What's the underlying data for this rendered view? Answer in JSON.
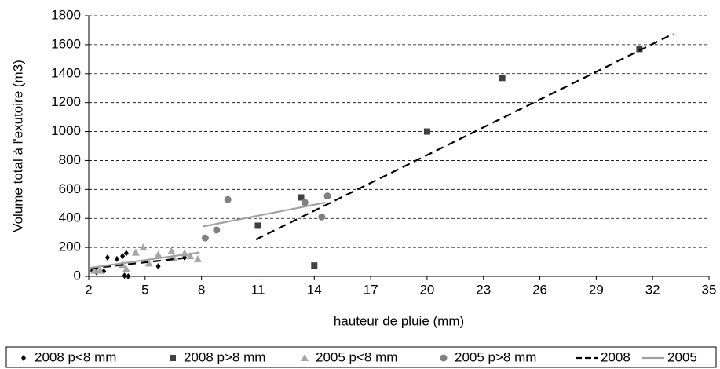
{
  "chart_data": {
    "type": "scatter",
    "xlabel": "hauteur de pluie (mm)",
    "ylabel": "Volume total à l'exutoire (m3)",
    "xlim": [
      2,
      35
    ],
    "xticks": [
      2,
      5,
      8,
      11,
      14,
      17,
      20,
      23,
      26,
      29,
      32,
      35
    ],
    "ylim": [
      0,
      1800
    ],
    "yticks": [
      0,
      200,
      400,
      600,
      800,
      1000,
      1200,
      1400,
      1600,
      1800
    ],
    "grid": true,
    "legend": "bottom",
    "series": [
      {
        "name": "2008 p<8 mm",
        "color": "#000000",
        "marker": "diamond",
        "x": [
          2.2,
          2.4,
          2.8,
          3.0,
          3.5,
          3.8,
          3.9,
          4.1,
          4.0,
          5.7,
          7.1
        ],
        "values": [
          40,
          30,
          35,
          130,
          120,
          140,
          5,
          0,
          160,
          70,
          130
        ]
      },
      {
        "name": "2008 p>8 mm",
        "color": "#404040",
        "marker": "square",
        "x": [
          11,
          13.3,
          14,
          20,
          24,
          31.3
        ],
        "values": [
          350,
          545,
          75,
          1000,
          1370,
          1570
        ]
      },
      {
        "name": "2005 p<8 mm",
        "color": "#a6a6a6",
        "marker": "triangle",
        "x": [
          2.3,
          2.6,
          3.8,
          4.0,
          4.5,
          4.9,
          5.2,
          5.7,
          6.4,
          6.5,
          7.1,
          7.4,
          7.8
        ],
        "values": [
          40,
          40,
          80,
          50,
          165,
          200,
          90,
          150,
          175,
          130,
          160,
          140,
          120
        ]
      },
      {
        "name": "2005 p>8 mm",
        "color": "#808080",
        "marker": "circle",
        "x": [
          8.2,
          8.8,
          9.4,
          13.5,
          14.4,
          14.7
        ],
        "values": [
          265,
          320,
          530,
          510,
          410,
          555
        ]
      },
      {
        "name": "2008",
        "color": "#000000",
        "line": "dashed",
        "x": [
          2.1,
          7.3,
          null,
          10.9,
          33.1
        ],
        "values": [
          55,
          130,
          null,
          255,
          1675
        ]
      },
      {
        "name": "2005",
        "color": "#a0a0a0",
        "line": "solid",
        "x": [
          2.1,
          7.9,
          null,
          8.1,
          14.6
        ],
        "values": [
          60,
          165,
          null,
          345,
          510
        ]
      }
    ]
  }
}
